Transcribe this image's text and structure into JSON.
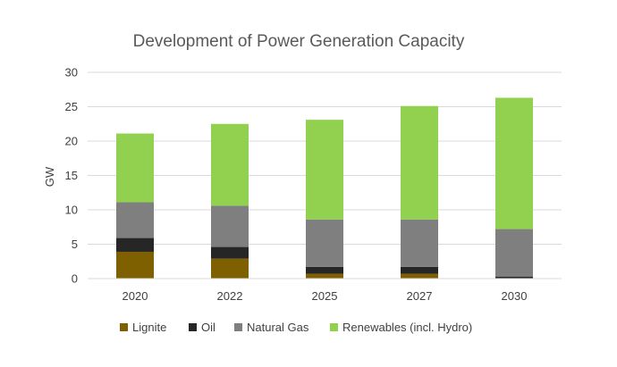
{
  "chart_data": {
    "type": "bar",
    "stacked": true,
    "title": "Development of Power Generation Capacity",
    "xlabel": "",
    "ylabel": "GW",
    "ylim": [
      0,
      30
    ],
    "yticks": [
      0,
      5,
      10,
      15,
      20,
      25,
      30
    ],
    "categories": [
      "2020",
      "2022",
      "2025",
      "2027",
      "2030"
    ],
    "series": [
      {
        "name": "Lignite",
        "color": "#7f6000",
        "values": [
          3.9,
          2.9,
          0.7,
          0.7,
          0.0
        ]
      },
      {
        "name": "Oil",
        "color": "#262626",
        "values": [
          2.0,
          1.7,
          1.0,
          1.0,
          0.3
        ]
      },
      {
        "name": "Natural Gas",
        "color": "#7f7f7f",
        "values": [
          5.2,
          6.0,
          6.9,
          6.9,
          6.9
        ]
      },
      {
        "name": "Renewables (incl. Hydro)",
        "color": "#92d050",
        "values": [
          10.0,
          11.9,
          14.5,
          16.5,
          19.1
        ]
      }
    ],
    "grid": true,
    "legend_position": "bottom"
  }
}
